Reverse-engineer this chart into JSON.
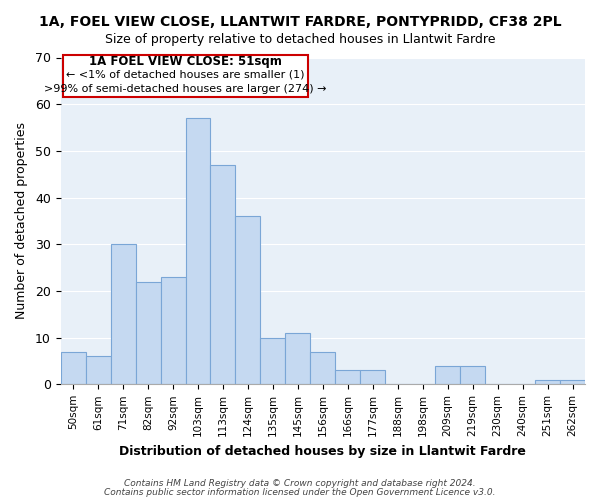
{
  "title": "1A, FOEL VIEW CLOSE, LLANTWIT FARDRE, PONTYPRIDD, CF38 2PL",
  "subtitle": "Size of property relative to detached houses in Llantwit Fardre",
  "xlabel": "Distribution of detached houses by size in Llantwit Fardre",
  "ylabel": "Number of detached properties",
  "bar_labels": [
    "50sqm",
    "61sqm",
    "71sqm",
    "82sqm",
    "92sqm",
    "103sqm",
    "113sqm",
    "124sqm",
    "135sqm",
    "145sqm",
    "156sqm",
    "166sqm",
    "177sqm",
    "188sqm",
    "198sqm",
    "209sqm",
    "219sqm",
    "230sqm",
    "240sqm",
    "251sqm",
    "262sqm"
  ],
  "bar_values": [
    7,
    6,
    30,
    22,
    23,
    57,
    47,
    36,
    10,
    11,
    7,
    3,
    3,
    0,
    0,
    4,
    4,
    0,
    0,
    1,
    1
  ],
  "bar_color": "#c5d9f1",
  "bar_edge_color": "#7aa6d6",
  "ylim": [
    0,
    70
  ],
  "yticks": [
    0,
    10,
    20,
    30,
    40,
    50,
    60,
    70
  ],
  "annotation_title": "1A FOEL VIEW CLOSE: 51sqm",
  "annotation_line1": "← <1% of detached houses are smaller (1)",
  "annotation_line2": ">99% of semi-detached houses are larger (274) →",
  "annotation_box_color": "#ffffff",
  "annotation_box_edge": "#cc0000",
  "footer_line1": "Contains HM Land Registry data © Crown copyright and database right 2024.",
  "footer_line2": "Contains public sector information licensed under the Open Government Licence v3.0.",
  "bg_color": "#e8f0f8"
}
